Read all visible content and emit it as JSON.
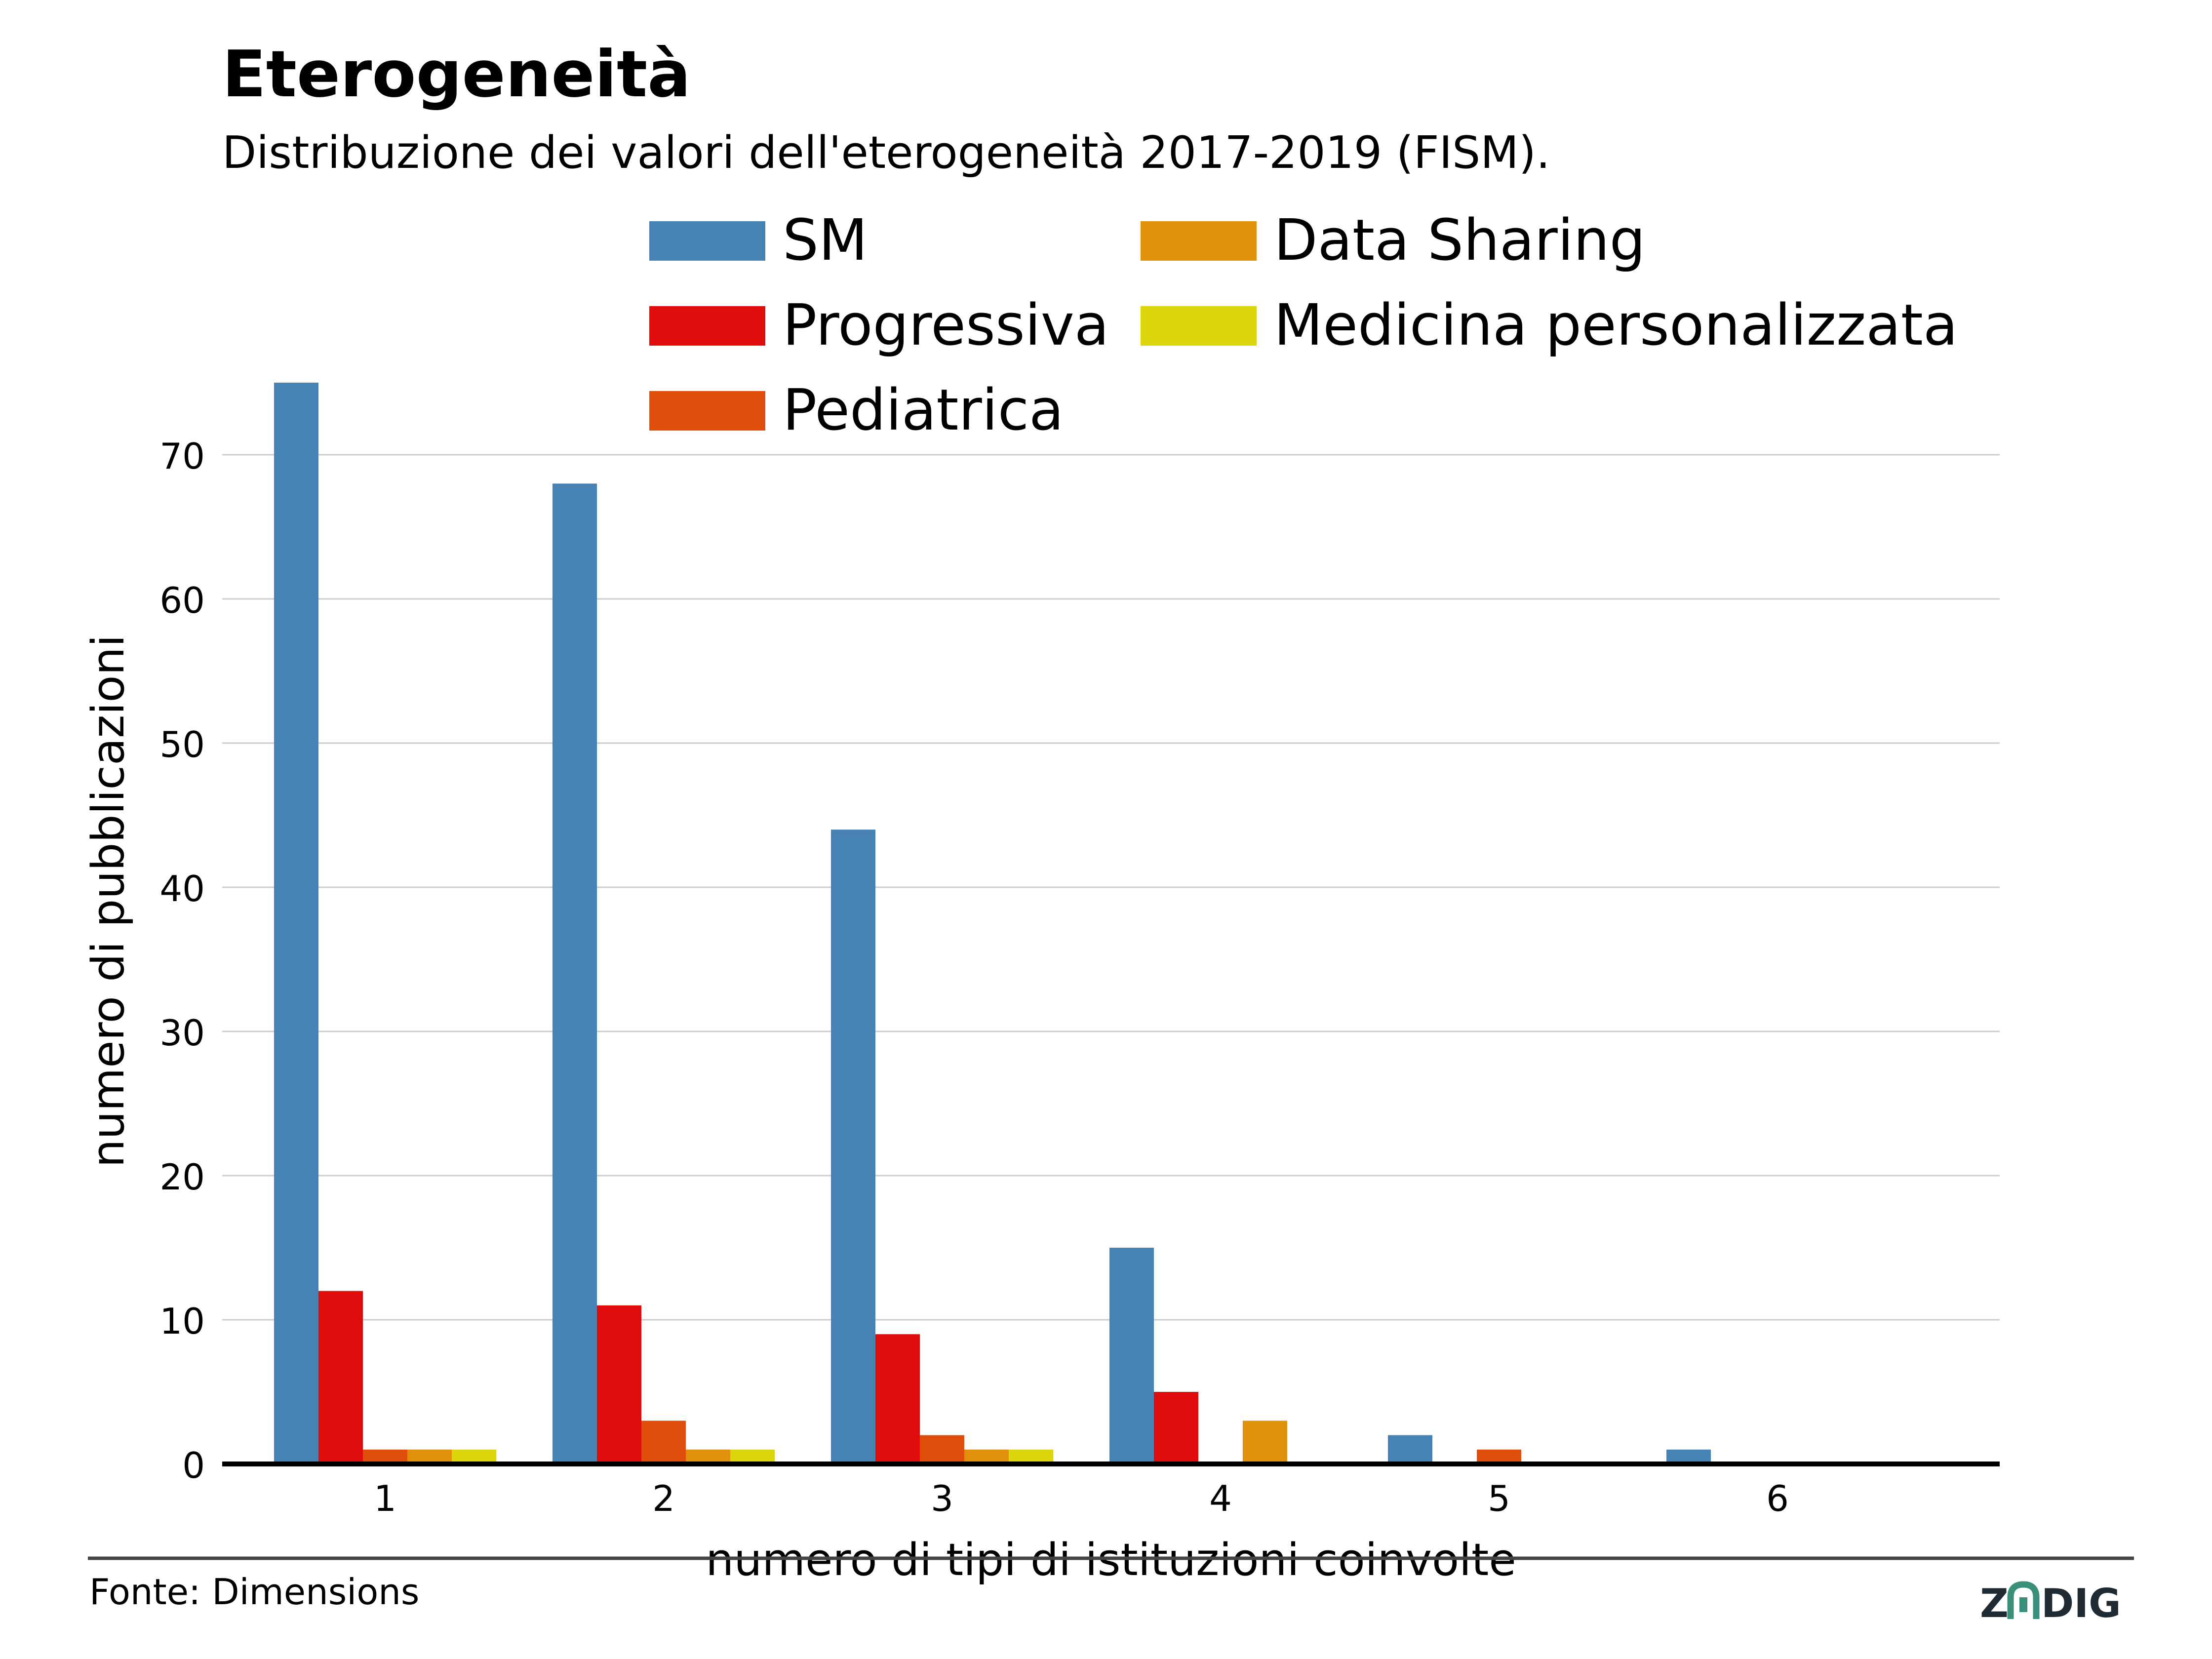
{
  "header": {
    "title": "Eterogeneità",
    "subtitle": "Distribuzione dei valori dell'eterogeneità 2017-2019 (FISM)."
  },
  "footer": {
    "source": "Fonte: Dimensions",
    "logo_text": "ZADIG"
  },
  "colors": {
    "SM": "#4682b4",
    "Progressiva": "#e00b0b",
    "Pediatrica": "#e04e0b",
    "Data Sharing": "#e0900b",
    "Medicina personalizzata": "#ddd50b",
    "logo_dark": "#1f2a33",
    "logo_accent": "#3a8f7a"
  },
  "chart_data": {
    "type": "bar",
    "categories": [
      "1",
      "2",
      "3",
      "4",
      "5",
      "6"
    ],
    "series": [
      {
        "name": "SM",
        "values": [
          75,
          68,
          44,
          15,
          2,
          1
        ]
      },
      {
        "name": "Progressiva",
        "values": [
          12,
          11,
          9,
          5,
          0,
          0
        ]
      },
      {
        "name": "Pediatrica",
        "values": [
          1,
          3,
          2,
          0,
          1,
          0
        ]
      },
      {
        "name": "Data Sharing",
        "values": [
          1,
          1,
          1,
          3,
          0,
          0
        ]
      },
      {
        "name": "Medicina personalizzata",
        "values": [
          1,
          1,
          1,
          0,
          0,
          0
        ]
      }
    ],
    "xlabel": "numero di tipi di istituzioni coinvolte",
    "ylabel": "numero di pubblicazioni",
    "yticks": [
      0,
      10,
      20,
      30,
      40,
      50,
      60,
      70
    ],
    "ylim": [
      0,
      78
    ],
    "grid": "horizontal",
    "legend_position": "top"
  }
}
